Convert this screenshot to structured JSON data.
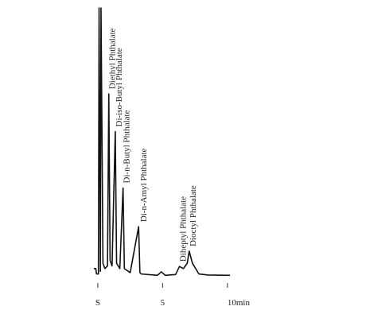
{
  "chart_data": {
    "type": "line",
    "x": [
      -0.3,
      -0.15,
      -0.1,
      0.05,
      0.1,
      0.2,
      0.25,
      0.4,
      0.55,
      0.75,
      0.85,
      0.95,
      1.1,
      1.35,
      1.45,
      1.7,
      1.95,
      2.05,
      2.5,
      3.15,
      3.25,
      3.35,
      4.6,
      4.9,
      5.2,
      6.0,
      6.3,
      6.6,
      6.9,
      7.05,
      7.3,
      7.8,
      8.5,
      10.2
    ],
    "series": [
      {
        "color": "#111111",
        "values": [
          3,
          3,
          1,
          1,
          100,
          2,
          100,
          5,
          3,
          4,
          68,
          6,
          4,
          54,
          5,
          3,
          33,
          3,
          1.5,
          18.6,
          1.5,
          1,
          0.5,
          1.8,
          0.5,
          0.8,
          3.8,
          3,
          5,
          9.5,
          5,
          1,
          0.6,
          0.5
        ]
      }
    ],
    "xlim": [
      -0.3,
      10.5
    ],
    "ylim": [
      0,
      100
    ],
    "xticks": [
      {
        "value": 0,
        "label": "S"
      },
      5,
      {
        "value": 10,
        "label": "10min"
      }
    ],
    "annotations": [
      {
        "text": "Diethyl  Phthalate",
        "x": 0.85,
        "y": 68
      },
      {
        "text": "Di-iso-Butyl Phthalate",
        "x": 1.35,
        "y": 54
      },
      {
        "text": "Di-n-Butyl Phthalate",
        "x": 1.95,
        "y": 33
      },
      {
        "text": "Di-n-Amyl Phthalate",
        "x": 3.25,
        "y": 18.6
      },
      {
        "text": "Diheptyl  Phthalate",
        "x": 6.3,
        "y": 3.8
      },
      {
        "text": "Dioctyl  Phthalate",
        "x": 7.05,
        "y": 9.5
      }
    ]
  }
}
